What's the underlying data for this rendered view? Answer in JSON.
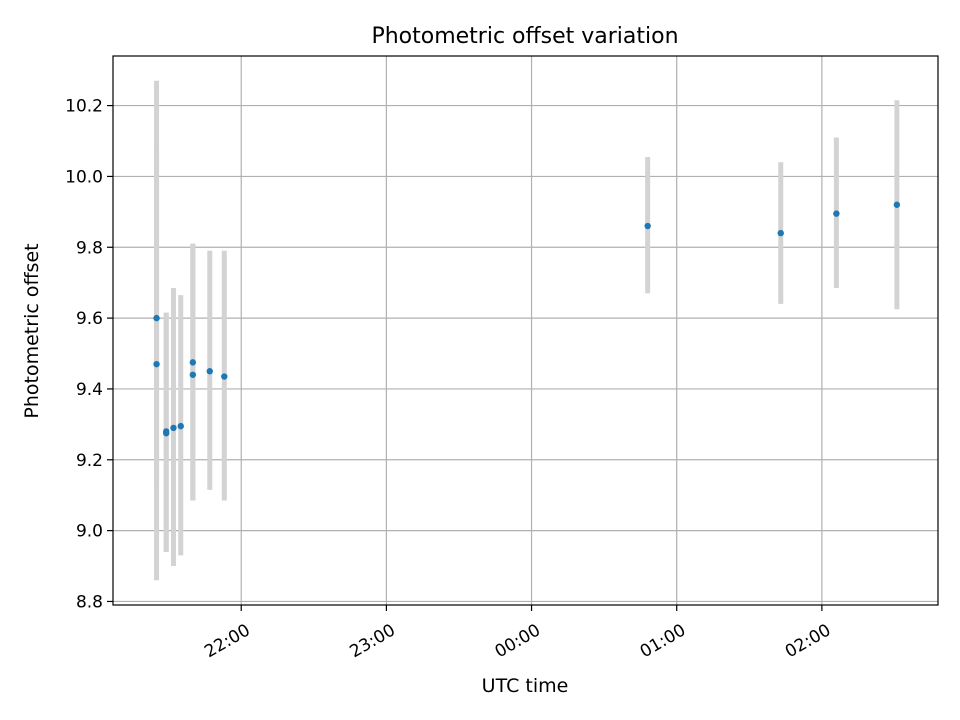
{
  "chart_data": {
    "type": "scatter",
    "title": "Photometric offset variation",
    "xlabel": "UTC time",
    "ylabel": "Photometric offset",
    "grid": true,
    "legend": "none",
    "colors": {
      "point": "#1f77b4",
      "errorbar": "#d3d3d3",
      "grid": "#b0b0b0",
      "axes": "#000000"
    },
    "x_ticks": [
      {
        "value": "22:00",
        "label": "22:00"
      },
      {
        "value": "23:00",
        "label": "23:00"
      },
      {
        "value": "00:00",
        "label": "00:00"
      },
      {
        "value": "01:00",
        "label": "01:00"
      },
      {
        "value": "02:00",
        "label": "02:00"
      }
    ],
    "y_ticks": [
      8.8,
      9.0,
      9.2,
      9.4,
      9.6,
      9.8,
      10.0,
      10.2
    ],
    "xlim": [
      "21:07",
      "02:48"
    ],
    "ylim": [
      8.79,
      10.34
    ],
    "points": [
      {
        "x": "21:25",
        "y": 9.6,
        "ylow": 9.13,
        "yhigh": 10.08
      },
      {
        "x": "21:25",
        "y": 9.47,
        "ylow": 8.86,
        "yhigh": 10.27
      },
      {
        "x": "21:29",
        "y": 9.275,
        "ylow": 8.94,
        "yhigh": 9.615
      },
      {
        "x": "21:29",
        "y": 9.28,
        "ylow": 8.94,
        "yhigh": 9.615
      },
      {
        "x": "21:32",
        "y": 9.29,
        "ylow": 8.9,
        "yhigh": 9.685
      },
      {
        "x": "21:35",
        "y": 9.295,
        "ylow": 8.93,
        "yhigh": 9.665
      },
      {
        "x": "21:40",
        "y": 9.475,
        "ylow": 9.085,
        "yhigh": 9.81
      },
      {
        "x": "21:40",
        "y": 9.44,
        "ylow": 9.085,
        "yhigh": 9.81
      },
      {
        "x": "21:47",
        "y": 9.45,
        "ylow": 9.115,
        "yhigh": 9.79
      },
      {
        "x": "21:53",
        "y": 9.435,
        "ylow": 9.085,
        "yhigh": 9.79
      },
      {
        "x": "00:48",
        "y": 9.86,
        "ylow": 9.67,
        "yhigh": 10.055
      },
      {
        "x": "01:43",
        "y": 9.84,
        "ylow": 9.64,
        "yhigh": 10.04
      },
      {
        "x": "02:06",
        "y": 9.895,
        "ylow": 9.685,
        "yhigh": 10.11
      },
      {
        "x": "02:31",
        "y": 9.92,
        "ylow": 9.625,
        "yhigh": 10.215
      }
    ]
  }
}
